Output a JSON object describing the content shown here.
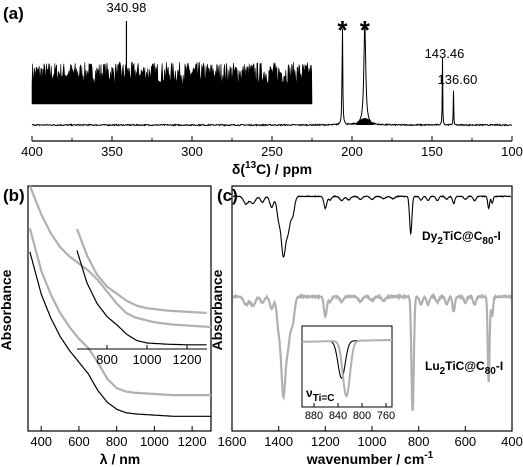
{
  "chart_data": [
    {
      "panel": "(a)",
      "type": "line",
      "xlabel_prefix": "δ(",
      "xlabel_sup": "13",
      "xlabel_suffix": "C) / ppm",
      "xlim": [
        400,
        100
      ],
      "x_ticks": [
        "400",
        "350",
        "300",
        "250",
        "200",
        "150",
        "100"
      ],
      "peaks": [
        {
          "x": 340.98,
          "label": "340.98",
          "rel_height": 0.3,
          "series": "inset"
        },
        {
          "x": 206.0,
          "label": "*",
          "rel_height": 1.0,
          "series": "main"
        },
        {
          "x": 192.0,
          "label": "*",
          "rel_height": 1.0,
          "series": "main"
        },
        {
          "x": 143.46,
          "label": "143.46",
          "rel_height": 0.68,
          "series": "main"
        },
        {
          "x": 136.6,
          "label": "136.60",
          "rel_height": 0.35,
          "series": "main"
        }
      ],
      "inset_xlim": [
        400,
        225
      ],
      "color": "#000000"
    },
    {
      "panel": "(b)",
      "type": "line",
      "xlabel": "λ / nm",
      "ylabel": "Absorbance",
      "xlim": [
        330,
        1300
      ],
      "x_ticks": [
        "400",
        "600",
        "800",
        "1000",
        "1200"
      ],
      "series": [
        {
          "color": "#b0b0b0",
          "x": [
            340,
            400,
            450,
            500,
            550,
            600,
            650,
            700,
            750,
            800,
            850,
            900,
            1000,
            1100,
            1200,
            1300
          ],
          "y": [
            1.0,
            0.88,
            0.8,
            0.74,
            0.7,
            0.67,
            0.64,
            0.6,
            0.55,
            0.5,
            0.46,
            0.44,
            0.42,
            0.41,
            0.405,
            0.4
          ]
        },
        {
          "color": "#b0b0b0",
          "x": [
            340,
            400,
            450,
            500,
            550,
            600,
            650,
            700,
            750,
            800,
            850,
            900,
            1000,
            1100,
            1200,
            1300
          ],
          "y": [
            0.82,
            0.64,
            0.54,
            0.46,
            0.4,
            0.35,
            0.31,
            0.25,
            0.18,
            0.14,
            0.125,
            0.12,
            0.115,
            0.11,
            0.11,
            0.11
          ]
        },
        {
          "color": "#000000",
          "x": [
            340,
            400,
            450,
            500,
            550,
            600,
            650,
            700,
            750,
            800,
            850,
            900,
            1000,
            1100,
            1200,
            1300
          ],
          "y": [
            0.72,
            0.54,
            0.44,
            0.36,
            0.3,
            0.25,
            0.2,
            0.13,
            0.08,
            0.05,
            0.035,
            0.03,
            0.025,
            0.02,
            0.02,
            0.02
          ]
        }
      ],
      "inset": {
        "xlim": [
          650,
          1300
        ],
        "x_ticks": [
          "800",
          "1000",
          "1200"
        ],
        "series": [
          {
            "color": "#b0b0b0",
            "x": [
              650,
              700,
              750,
              800,
              850,
              900,
              950,
              1000,
              1100,
              1200,
              1300
            ],
            "y": [
              1.0,
              0.78,
              0.62,
              0.52,
              0.46,
              0.4,
              0.36,
              0.34,
              0.32,
              0.31,
              0.3
            ]
          },
          {
            "color": "#000000",
            "x": [
              650,
              700,
              750,
              800,
              850,
              900,
              950,
              1000,
              1100,
              1200,
              1300
            ],
            "y": [
              0.82,
              0.55,
              0.38,
              0.27,
              0.2,
              0.12,
              0.07,
              0.05,
              0.04,
              0.035,
              0.035
            ]
          }
        ]
      }
    },
    {
      "panel": "(c)",
      "type": "line",
      "xlabel": "wavenumber / cm",
      "xlabel_sup": "-1",
      "ylabel": "Absorbance",
      "xlim": [
        1600,
        400
      ],
      "x_ticks": [
        "1600",
        "1400",
        "1200",
        "1000",
        "800",
        "600",
        "400"
      ],
      "series": [
        {
          "color": "#000000",
          "label_main": "Dy",
          "label_parts": [
            "Dy",
            "2",
            "TiC@C",
            "80",
            "-I"
          ],
          "bands": [
            {
              "x": 1540,
              "depth": 0.13,
              "w": 10
            },
            {
              "x": 1510,
              "depth": 0.12,
              "w": 10
            },
            {
              "x": 1470,
              "depth": 0.1,
              "w": 8
            },
            {
              "x": 1430,
              "depth": 0.18,
              "w": 8
            },
            {
              "x": 1400,
              "depth": 0.36,
              "w": 8
            },
            {
              "x": 1380,
              "depth": 0.95,
              "w": 9
            },
            {
              "x": 1360,
              "depth": 0.55,
              "w": 9
            },
            {
              "x": 1340,
              "depth": 0.3,
              "w": 8
            },
            {
              "x": 1200,
              "depth": 0.2,
              "w": 6
            },
            {
              "x": 1180,
              "depth": 0.06,
              "w": 6
            },
            {
              "x": 1130,
              "depth": 0.07,
              "w": 8
            },
            {
              "x": 1100,
              "depth": 0.06,
              "w": 8
            },
            {
              "x": 1050,
              "depth": 0.05,
              "w": 8
            },
            {
              "x": 1000,
              "depth": 0.05,
              "w": 8
            },
            {
              "x": 950,
              "depth": 0.04,
              "w": 8
            },
            {
              "x": 910,
              "depth": 0.04,
              "w": 8
            },
            {
              "x": 834,
              "depth": 0.62,
              "w": 5
            },
            {
              "x": 790,
              "depth": 0.06,
              "w": 6
            },
            {
              "x": 760,
              "depth": 0.07,
              "w": 6
            },
            {
              "x": 720,
              "depth": 0.07,
              "w": 6
            },
            {
              "x": 680,
              "depth": 0.05,
              "w": 6
            },
            {
              "x": 650,
              "depth": 0.12,
              "w": 5
            },
            {
              "x": 600,
              "depth": 0.05,
              "w": 6
            },
            {
              "x": 560,
              "depth": 0.07,
              "w": 6
            },
            {
              "x": 500,
              "depth": 0.2,
              "w": 4
            },
            {
              "x": 485,
              "depth": 0.12,
              "w": 4
            }
          ]
        },
        {
          "color": "#b0b0b0",
          "label_main": "Lu",
          "label_parts": [
            "Lu",
            "2",
            "TiC@C",
            "80",
            "-I"
          ],
          "bands": [
            {
              "x": 1540,
              "depth": 0.08,
              "w": 10
            },
            {
              "x": 1510,
              "depth": 0.09,
              "w": 10
            },
            {
              "x": 1470,
              "depth": 0.06,
              "w": 8
            },
            {
              "x": 1430,
              "depth": 0.12,
              "w": 8
            },
            {
              "x": 1400,
              "depth": 0.3,
              "w": 8
            },
            {
              "x": 1380,
              "depth": 0.95,
              "w": 9
            },
            {
              "x": 1360,
              "depth": 0.45,
              "w": 9
            },
            {
              "x": 1340,
              "depth": 0.25,
              "w": 8
            },
            {
              "x": 1200,
              "depth": 0.2,
              "w": 6
            },
            {
              "x": 1180,
              "depth": 0.05,
              "w": 6
            },
            {
              "x": 1130,
              "depth": 0.05,
              "w": 8
            },
            {
              "x": 1050,
              "depth": 0.05,
              "w": 8
            },
            {
              "x": 1000,
              "depth": 0.04,
              "w": 8
            },
            {
              "x": 950,
              "depth": 0.04,
              "w": 8
            },
            {
              "x": 826,
              "depth": 1.15,
              "w": 5
            },
            {
              "x": 790,
              "depth": 0.08,
              "w": 6
            },
            {
              "x": 760,
              "depth": 0.08,
              "w": 6
            },
            {
              "x": 720,
              "depth": 0.06,
              "w": 6
            },
            {
              "x": 680,
              "depth": 0.08,
              "w": 6
            },
            {
              "x": 650,
              "depth": 0.15,
              "w": 5
            },
            {
              "x": 600,
              "depth": 0.06,
              "w": 6
            },
            {
              "x": 560,
              "depth": 0.08,
              "w": 6
            },
            {
              "x": 500,
              "depth": 0.85,
              "w": 4
            },
            {
              "x": 485,
              "depth": 0.2,
              "w": 4
            }
          ]
        }
      ],
      "inset": {
        "xlim": [
          900,
          750
        ],
        "x_ticks": [
          "880",
          "840",
          "800",
          "760"
        ],
        "label_main": "ν",
        "label_sub": "Ti=C",
        "series": [
          {
            "color": "#000000",
            "center": 834,
            "depth": 0.62,
            "w": 6
          },
          {
            "color": "#b0b0b0",
            "center": 826,
            "depth": 0.92,
            "w": 6
          }
        ]
      }
    }
  ]
}
